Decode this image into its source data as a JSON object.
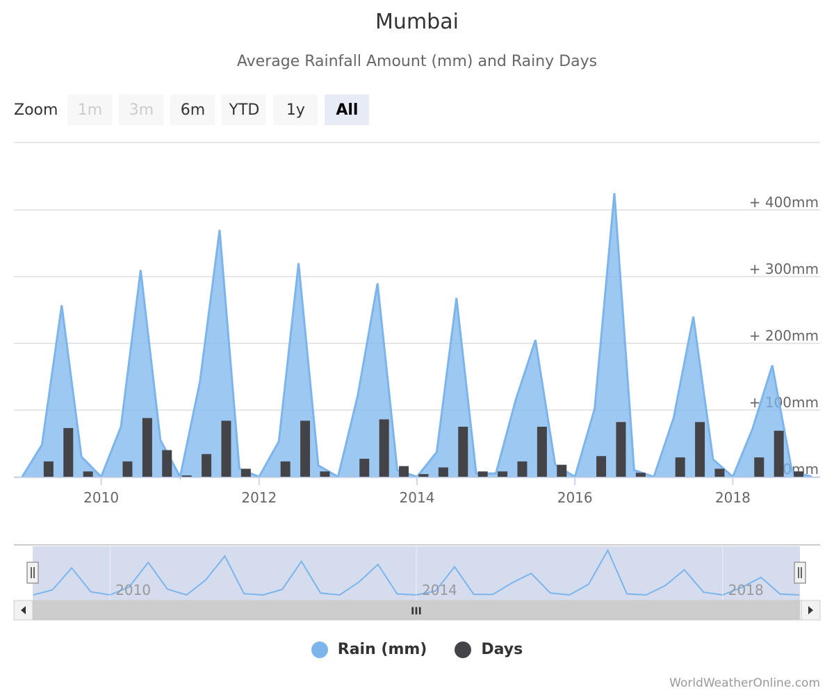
{
  "title": "Mumbai",
  "subtitle": "Average Rainfall Amount (mm) and Rainy Days",
  "zoom": {
    "label": "Zoom",
    "buttons": [
      {
        "label": "1m",
        "state": "disabled"
      },
      {
        "label": "3m",
        "state": "disabled"
      },
      {
        "label": "6m",
        "state": "normal"
      },
      {
        "label": "YTD",
        "state": "normal"
      },
      {
        "label": "1y",
        "state": "normal"
      },
      {
        "label": "All",
        "state": "selected"
      }
    ]
  },
  "navigator": {
    "handle_glyph": "III",
    "tick_labels": [
      "2010",
      "2014",
      "2018"
    ]
  },
  "legend": [
    {
      "label": "Rain (mm)",
      "color": "#7cb5ec"
    },
    {
      "label": "Days",
      "color": "#434348"
    }
  ],
  "credit": "WorldWeatherOnline.com",
  "colors": {
    "rain_fill": "#7cb5ec",
    "rain_line": "#7cb5ec",
    "days_bar": "#434348",
    "navigator_mask": "#ccd6eb",
    "scrollbar": "#cccccc"
  },
  "chart_data": {
    "type": "area",
    "title": "Mumbai",
    "subtitle": "Average Rainfall Amount (mm) and Rainy Days",
    "x_ticks": [
      "2010",
      "2012",
      "2014",
      "2016",
      "2018"
    ],
    "y_ticks": [
      "0mm",
      "+ 100mm",
      "+ 200mm",
      "+ 300mm",
      "+ 400mm"
    ],
    "ylim": [
      0,
      500
    ],
    "xlim": [
      "2009-01",
      "2019-01"
    ],
    "grid": true,
    "legend_position": "bottom",
    "series": [
      {
        "name": "Rain (mm)",
        "type": "area",
        "data": [
          [
            "2009-01",
            0
          ],
          [
            "2009-04",
            48
          ],
          [
            "2009-07",
            257
          ],
          [
            "2009-10",
            30
          ],
          [
            "2010-01",
            0
          ],
          [
            "2010-04",
            75
          ],
          [
            "2010-07",
            310
          ],
          [
            "2010-10",
            55
          ],
          [
            "2011-01",
            0
          ],
          [
            "2011-04",
            142
          ],
          [
            "2011-07",
            370
          ],
          [
            "2011-10",
            12
          ],
          [
            "2012-01",
            0
          ],
          [
            "2012-04",
            53
          ],
          [
            "2012-07",
            320
          ],
          [
            "2012-10",
            17
          ],
          [
            "2013-01",
            0
          ],
          [
            "2013-04",
            122
          ],
          [
            "2013-07",
            290
          ],
          [
            "2013-10",
            10
          ],
          [
            "2014-01",
            0
          ],
          [
            "2014-04",
            37
          ],
          [
            "2014-07",
            268
          ],
          [
            "2014-10",
            5
          ],
          [
            "2015-01",
            5
          ],
          [
            "2015-04",
            115
          ],
          [
            "2015-07",
            205
          ],
          [
            "2015-10",
            18
          ],
          [
            "2016-01",
            0
          ],
          [
            "2016-04",
            102
          ],
          [
            "2016-07",
            425
          ],
          [
            "2016-10",
            10
          ],
          [
            "2017-01",
            0
          ],
          [
            "2017-04",
            88
          ],
          [
            "2017-07",
            240
          ],
          [
            "2017-10",
            26
          ],
          [
            "2018-01",
            0
          ],
          [
            "2018-04",
            72
          ],
          [
            "2018-07",
            167
          ],
          [
            "2018-10",
            8
          ],
          [
            "2019-01",
            0
          ]
        ]
      },
      {
        "name": "Days",
        "type": "column",
        "data": [
          [
            "2009-05",
            23
          ],
          [
            "2009-08",
            73
          ],
          [
            "2009-11",
            8
          ],
          [
            "2010-05",
            23
          ],
          [
            "2010-08",
            88
          ],
          [
            "2010-11",
            40
          ],
          [
            "2011-02",
            2
          ],
          [
            "2011-05",
            34
          ],
          [
            "2011-08",
            84
          ],
          [
            "2011-11",
            12
          ],
          [
            "2012-05",
            23
          ],
          [
            "2012-08",
            84
          ],
          [
            "2012-11",
            8
          ],
          [
            "2013-05",
            27
          ],
          [
            "2013-08",
            86
          ],
          [
            "2013-11",
            16
          ],
          [
            "2014-02",
            4
          ],
          [
            "2014-05",
            14
          ],
          [
            "2014-08",
            75
          ],
          [
            "2014-11",
            8
          ],
          [
            "2015-02",
            8
          ],
          [
            "2015-05",
            23
          ],
          [
            "2015-08",
            75
          ],
          [
            "2015-11",
            18
          ],
          [
            "2016-05",
            31
          ],
          [
            "2016-08",
            82
          ],
          [
            "2016-11",
            6
          ],
          [
            "2017-05",
            29
          ],
          [
            "2017-08",
            82
          ],
          [
            "2017-11",
            12
          ],
          [
            "2018-05",
            29
          ],
          [
            "2018-08",
            69
          ],
          [
            "2018-11",
            8
          ]
        ]
      }
    ]
  }
}
